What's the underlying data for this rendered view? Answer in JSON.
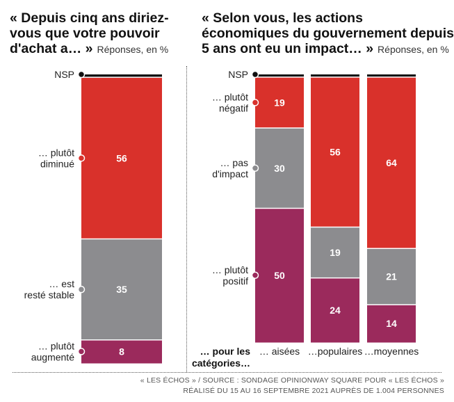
{
  "chart_data": [
    {
      "type": "bar",
      "stacked": true,
      "title": "« Depuis cinq ans diriez-vous que votre pouvoir d'achat a… »",
      "subtitle": "Réponses, en %",
      "categories": [
        ""
      ],
      "series": [
        {
          "name": "… plutôt augmenté",
          "values": [
            8
          ],
          "color": "#9b2a5c",
          "show_label": true
        },
        {
          "name": "… est resté stable",
          "values": [
            35
          ],
          "color": "#8c8c8f",
          "show_label": true
        },
        {
          "name": "… plutôt diminué",
          "values": [
            56
          ],
          "color": "#d9312b",
          "show_label": true
        },
        {
          "name": "NSP",
          "values": [
            1
          ],
          "color": "#111111",
          "show_label": false
        }
      ],
      "ylim": [
        0,
        100
      ],
      "legend_position": "left, inline with segments"
    },
    {
      "type": "bar",
      "stacked": true,
      "title": "« Selon vous, les actions économiques du gouvernement depuis 5 ans ont eu un impact… »",
      "subtitle": "Réponses, en %",
      "categories": [
        "… aisées",
        "…populaires",
        "…moyennes"
      ],
      "category_prefix": "… pour les catégories…",
      "series": [
        {
          "name": "… plutôt positif",
          "values": [
            50,
            24,
            14
          ],
          "color": "#9b2a5c",
          "show_label": true
        },
        {
          "name": "… pas d'impact",
          "values": [
            30,
            19,
            21
          ],
          "color": "#8c8c8f",
          "show_label": true
        },
        {
          "name": "… plutôt négatif",
          "values": [
            19,
            56,
            64
          ],
          "color": "#d9312b",
          "show_label": true
        },
        {
          "name": "NSP",
          "values": [
            1,
            1,
            1
          ],
          "color": "#111111",
          "show_label": false
        }
      ],
      "ylim": [
        0,
        100
      ],
      "legend_position": "left, inline with segments"
    }
  ],
  "footer": {
    "line1": "« LES ÉCHOS » / SOURCE : SONDAGE OPINIONWAY SQUARE POUR « LES ÉCHOS »",
    "line2": "RÉALISÉ DU 15 AU 16 SEPTEMBRE 2021 AUPRÈS DE 1.004 PERSONNES"
  }
}
